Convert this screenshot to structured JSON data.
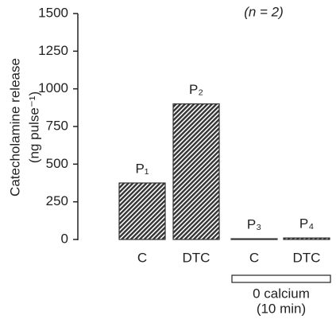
{
  "chart_data": {
    "type": "bar",
    "annotation": "(n = 2)",
    "ylabel": [
      "Catecholamine release",
      "(ng pulse⁻¹)"
    ],
    "categories": [
      "C",
      "DTC",
      "C",
      "DTC"
    ],
    "values": [
      375,
      900,
      5,
      10
    ],
    "bar_labels": [
      "P₁",
      "P₂",
      "P₃",
      "P₄"
    ],
    "group_label": [
      "0 calcium",
      "(10 min)"
    ],
    "color": "#333333",
    "ylim": [
      0,
      1500
    ],
    "yticks": [
      0,
      250,
      500,
      750,
      1000,
      1250,
      1500
    ],
    "grid": false
  }
}
